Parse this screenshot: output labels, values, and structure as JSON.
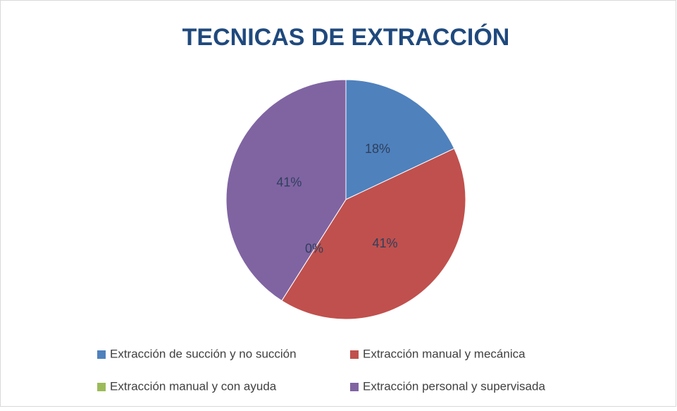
{
  "chart_data": {
    "type": "pie",
    "title": "TECNICAS DE EXTRACCIÓN",
    "categories": [
      "Extracción de succión y no succión",
      "Extracción manual y mecánica",
      "Extracción manual y con ayuda",
      "Extracción personal y supervisada"
    ],
    "values": [
      18,
      41,
      0,
      41
    ],
    "value_labels": [
      "18%",
      "41%",
      "0%",
      "41%"
    ],
    "colors": [
      "#4f81bd",
      "#c0504d",
      "#9bbb59",
      "#8064a2"
    ],
    "legend": "bottom"
  }
}
